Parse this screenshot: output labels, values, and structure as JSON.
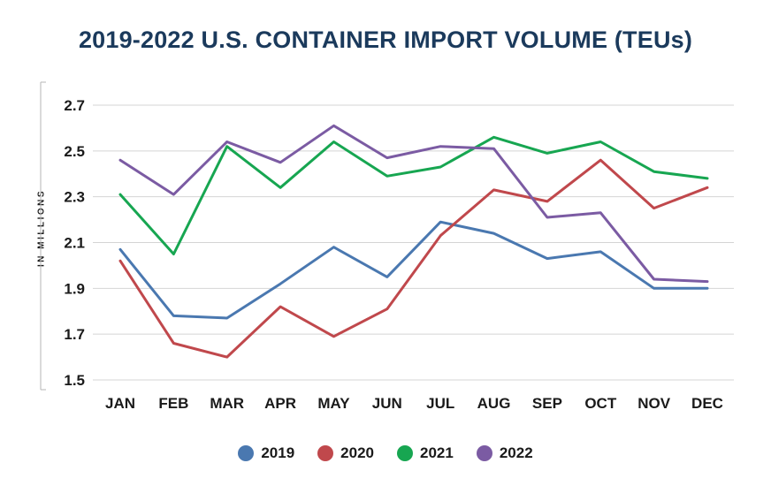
{
  "chart_data": {
    "type": "line",
    "title": "2019-2022 U.S. CONTAINER IMPORT VOLUME (TEUs)",
    "ylabel": "IN MILLIONS",
    "xlabel": "",
    "categories": [
      "JAN",
      "FEB",
      "MAR",
      "APR",
      "MAY",
      "JUN",
      "JUL",
      "AUG",
      "SEP",
      "OCT",
      "NOV",
      "DEC"
    ],
    "ylim": [
      1.5,
      2.7
    ],
    "yticks": [
      "2.7",
      "2.5",
      "2.3",
      "2.1",
      "1.9",
      "1.7",
      "1.5"
    ],
    "ytick_values": [
      2.7,
      2.5,
      2.3,
      2.1,
      1.9,
      1.7,
      1.5
    ],
    "grid": true,
    "legend_position": "bottom",
    "series": [
      {
        "name": "2019",
        "color": "#4a78b0",
        "values": [
          2.07,
          1.78,
          1.77,
          1.92,
          2.08,
          1.95,
          2.19,
          2.14,
          2.03,
          2.06,
          1.9,
          1.9
        ]
      },
      {
        "name": "2020",
        "color": "#c0484c",
        "values": [
          2.02,
          1.66,
          1.6,
          1.82,
          1.69,
          1.81,
          2.13,
          2.33,
          2.28,
          2.46,
          2.25,
          2.34
        ]
      },
      {
        "name": "2021",
        "color": "#17a651",
        "values": [
          2.31,
          2.05,
          2.52,
          2.34,
          2.54,
          2.39,
          2.43,
          2.56,
          2.49,
          2.54,
          2.41,
          2.38
        ]
      },
      {
        "name": "2022",
        "color": "#7b5ba3",
        "values": [
          2.46,
          2.31,
          2.54,
          2.45,
          2.61,
          2.47,
          2.52,
          2.51,
          2.21,
          2.23,
          1.94,
          1.93
        ]
      }
    ]
  }
}
